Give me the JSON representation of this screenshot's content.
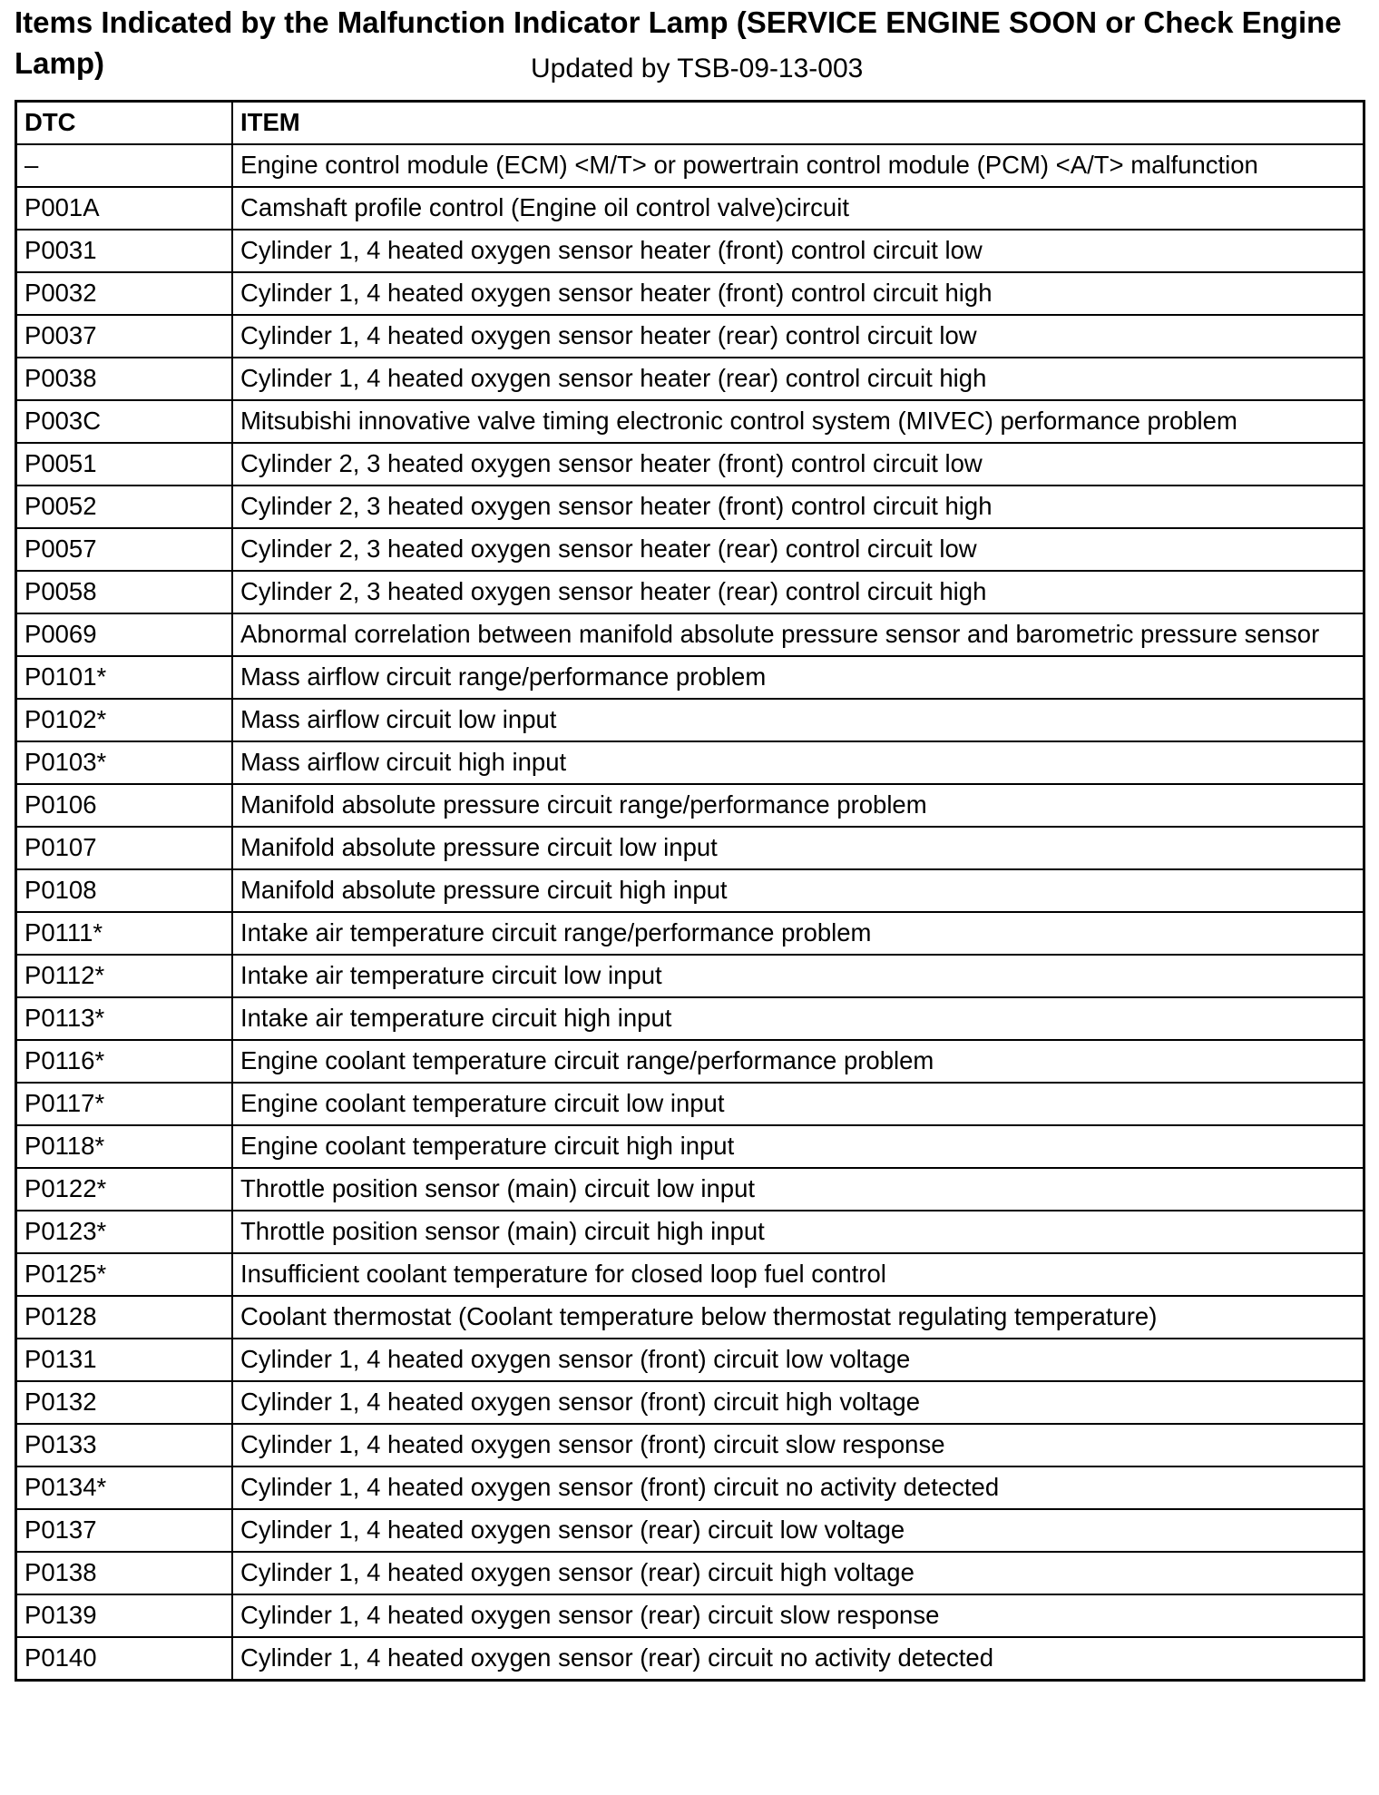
{
  "title": "Items Indicated by the Malfunction Indicator Lamp (SERVICE ENGINE SOON or Check Engine Lamp)",
  "updated": "Updated by TSB-09-13-003",
  "table": {
    "headers": [
      "DTC",
      "ITEM"
    ],
    "rows": [
      [
        "–",
        "Engine control module (ECM) <M/T> or powertrain control module (PCM) <A/T> malfunction"
      ],
      [
        "P001A",
        "Camshaft profile control (Engine oil control valve)circuit"
      ],
      [
        "P0031",
        "Cylinder 1, 4 heated oxygen sensor heater (front) control circuit low"
      ],
      [
        "P0032",
        "Cylinder 1, 4 heated oxygen sensor heater (front) control circuit high"
      ],
      [
        "P0037",
        "Cylinder 1, 4 heated oxygen sensor heater (rear) control circuit low"
      ],
      [
        "P0038",
        "Cylinder 1, 4 heated oxygen sensor heater (rear) control circuit high"
      ],
      [
        "P003C",
        "Mitsubishi innovative valve timing electronic control system (MIVEC) performance problem"
      ],
      [
        "P0051",
        "Cylinder 2, 3 heated oxygen sensor heater (front) control circuit low"
      ],
      [
        "P0052",
        "Cylinder 2, 3 heated oxygen sensor heater (front) control circuit high"
      ],
      [
        "P0057",
        "Cylinder 2, 3 heated oxygen sensor heater (rear) control circuit low"
      ],
      [
        "P0058",
        "Cylinder 2, 3 heated oxygen sensor heater (rear) control circuit high"
      ],
      [
        "P0069",
        "Abnormal correlation between manifold absolute pressure sensor and barometric pressure sensor"
      ],
      [
        "P0101*",
        "Mass airflow circuit range/performance problem"
      ],
      [
        "P0102*",
        "Mass airflow circuit low input"
      ],
      [
        "P0103*",
        "Mass airflow circuit high input"
      ],
      [
        "P0106",
        "Manifold absolute pressure circuit range/performance problem"
      ],
      [
        "P0107",
        "Manifold absolute pressure circuit low input"
      ],
      [
        "P0108",
        "Manifold absolute pressure circuit high input"
      ],
      [
        "P0111*",
        "Intake air temperature circuit range/performance problem"
      ],
      [
        "P0112*",
        "Intake air temperature circuit low input"
      ],
      [
        "P0113*",
        "Intake air temperature circuit high input"
      ],
      [
        "P0116*",
        "Engine coolant temperature circuit range/performance problem"
      ],
      [
        "P0117*",
        "Engine coolant temperature circuit low input"
      ],
      [
        "P0118*",
        "Engine coolant temperature circuit high input"
      ],
      [
        "P0122*",
        "Throttle position sensor (main) circuit low input"
      ],
      [
        "P0123*",
        "Throttle position sensor (main) circuit high input"
      ],
      [
        "P0125*",
        "Insufficient coolant temperature for closed loop fuel control"
      ],
      [
        "P0128",
        "Coolant thermostat (Coolant temperature below thermostat regulating temperature)"
      ],
      [
        "P0131",
        "Cylinder 1, 4 heated oxygen sensor (front) circuit low voltage"
      ],
      [
        "P0132",
        "Cylinder 1, 4 heated oxygen sensor (front) circuit high voltage"
      ],
      [
        "P0133",
        "Cylinder 1, 4 heated oxygen sensor (front) circuit slow response"
      ],
      [
        "P0134*",
        "Cylinder 1, 4 heated oxygen sensor (front) circuit no activity detected"
      ],
      [
        "P0137",
        "Cylinder 1, 4 heated oxygen sensor (rear) circuit low voltage"
      ],
      [
        "P0138",
        "Cylinder 1, 4 heated oxygen sensor (rear) circuit high voltage"
      ],
      [
        "P0139",
        "Cylinder 1, 4 heated oxygen sensor (rear) circuit slow response"
      ],
      [
        "P0140",
        "Cylinder 1, 4 heated oxygen sensor (rear) circuit no activity detected"
      ]
    ]
  }
}
